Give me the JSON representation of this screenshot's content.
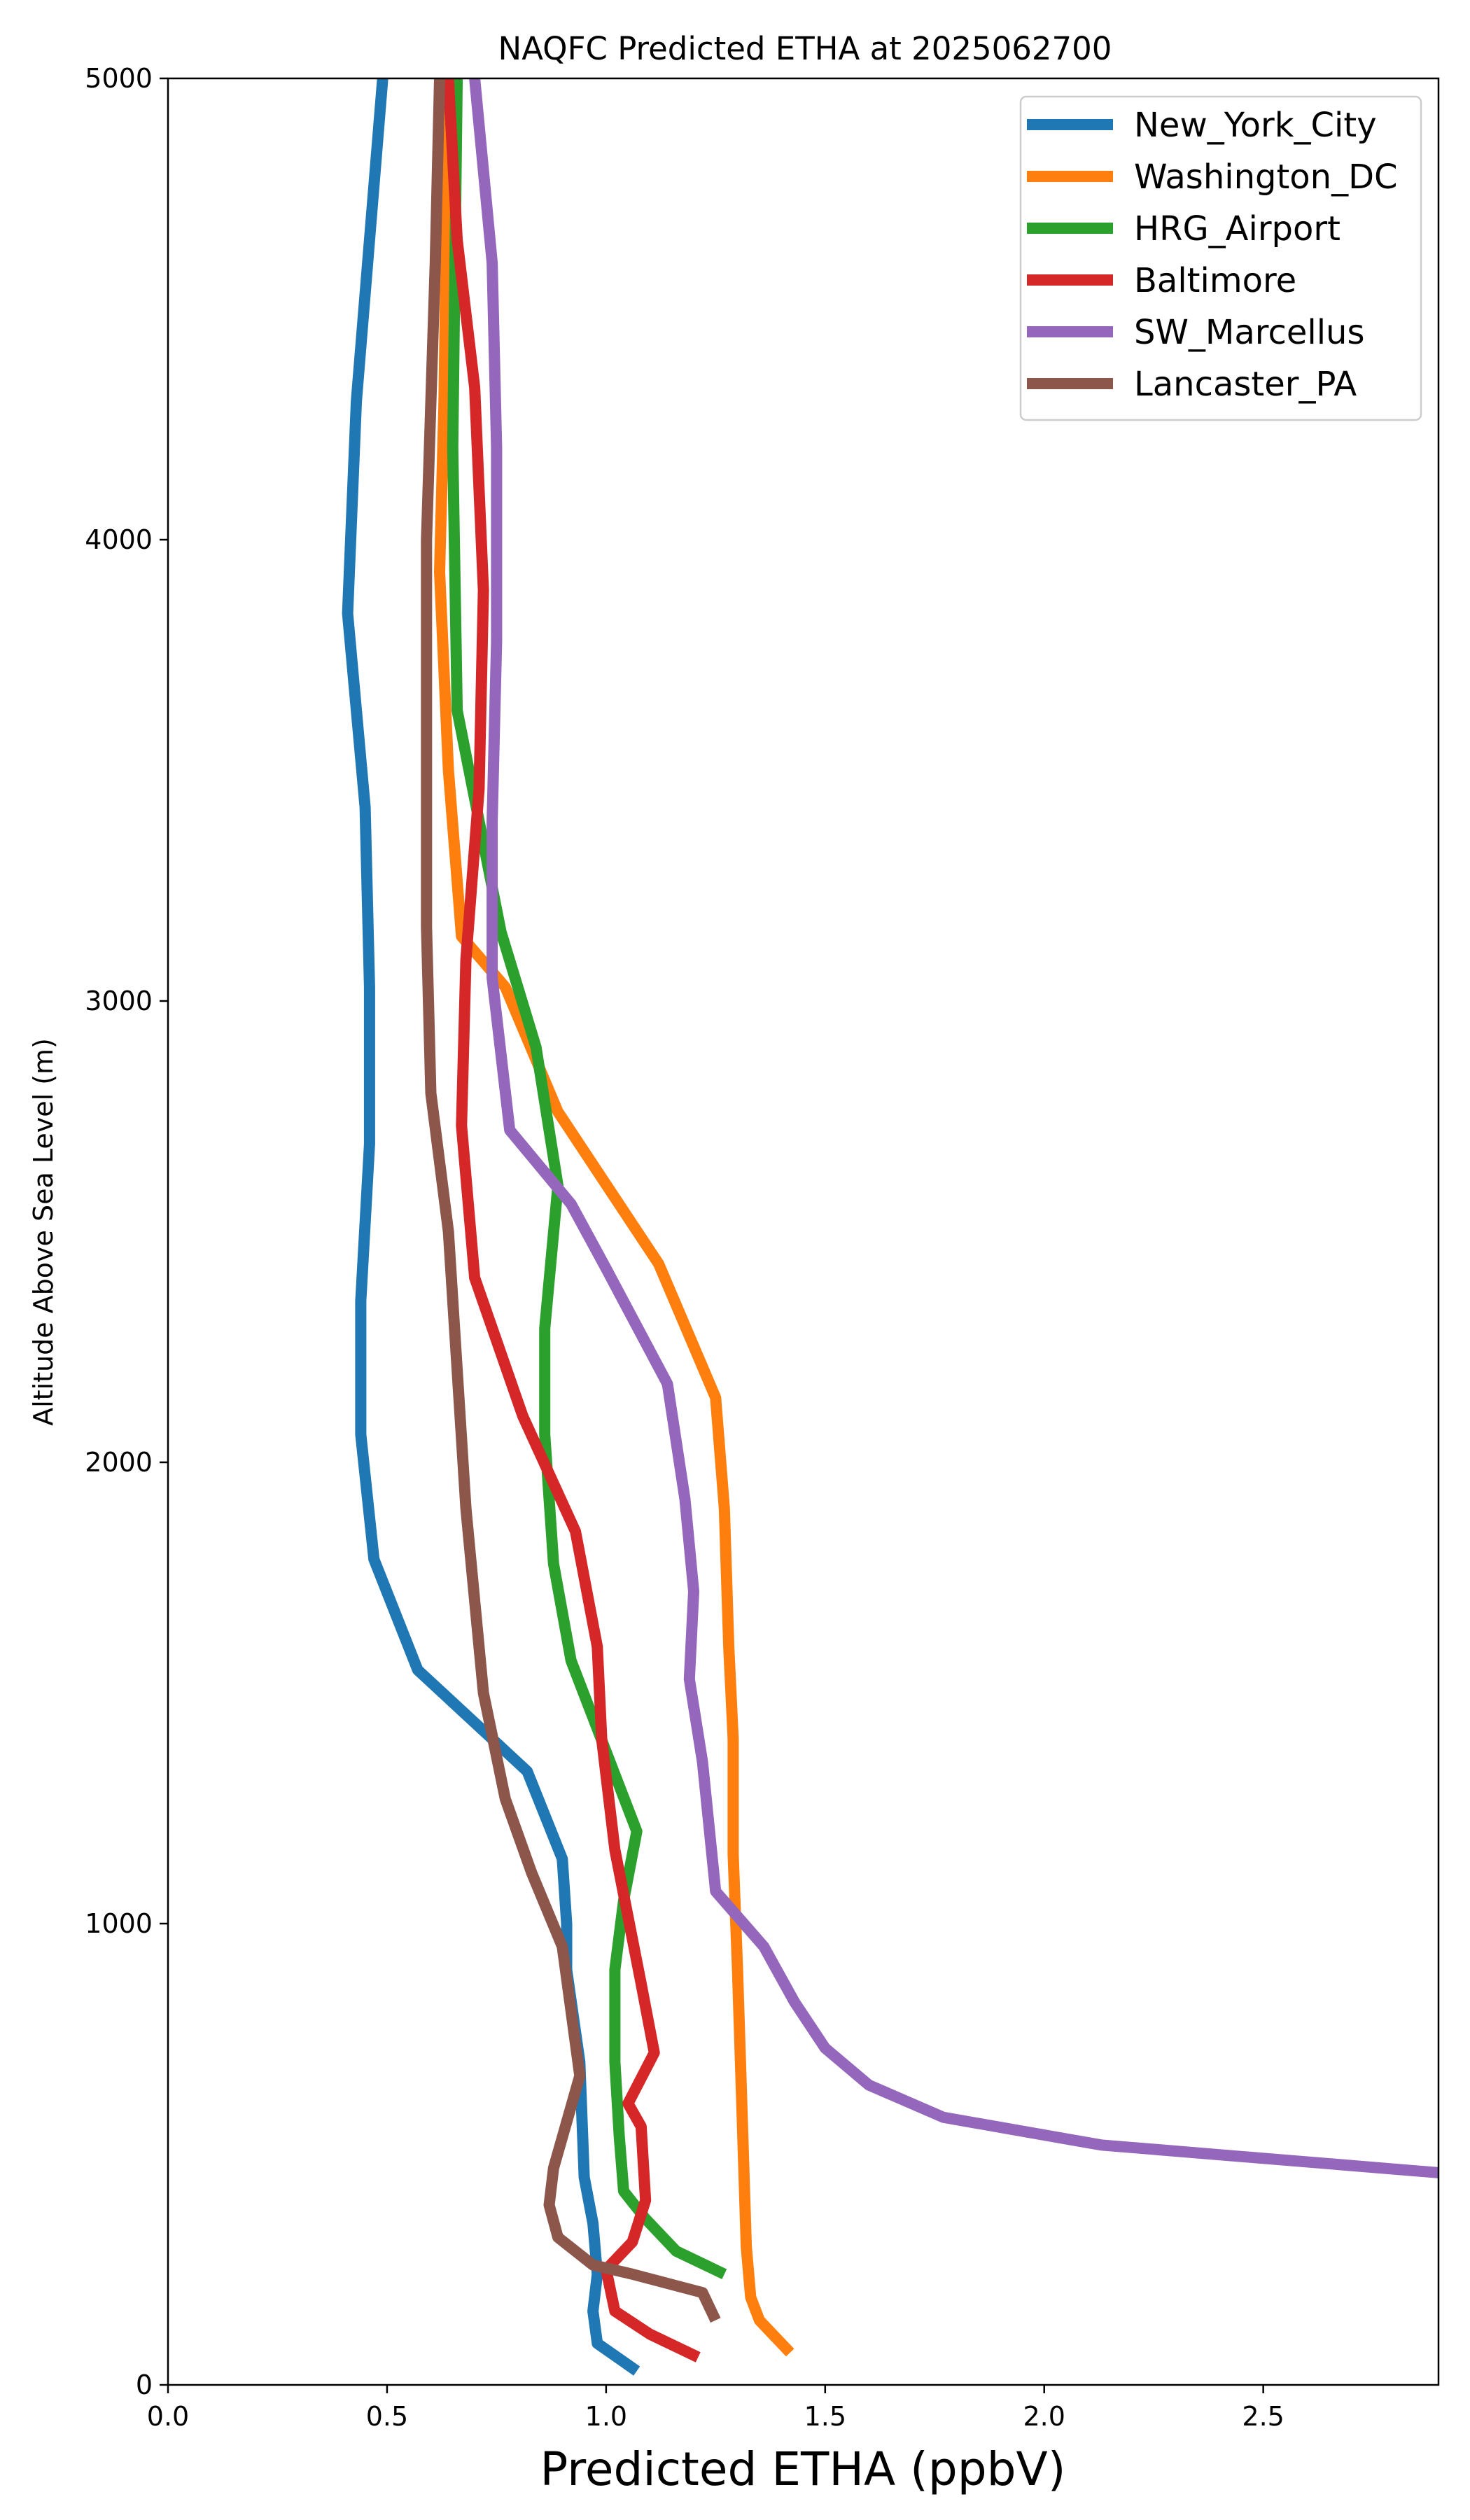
{
  "chart_data": {
    "type": "line",
    "title": "NAQFC Predicted ETHA at 2025062700",
    "xlabel": "Predicted ETHA (ppbV)",
    "ylabel": "Altitude Above Sea Level (m)",
    "xlim": [
      0,
      2.9
    ],
    "ylim": [
      0,
      5000
    ],
    "xticks": [
      0.0,
      0.5,
      1.0,
      1.5,
      2.0,
      2.5
    ],
    "xtick_labels": [
      "0.0",
      "0.5",
      "1.0",
      "1.5",
      "2.0",
      "2.5"
    ],
    "yticks": [
      0,
      1000,
      2000,
      3000,
      4000,
      5000
    ],
    "ytick_labels": [
      "0",
      "1000",
      "2000",
      "3000",
      "4000",
      "5000"
    ],
    "grid": false,
    "legend_position": "top-right",
    "series": [
      {
        "name": "New_York_City",
        "color": "#1f77b4",
        "points": [
          [
            1.07,
            30
          ],
          [
            0.98,
            90
          ],
          [
            0.97,
            160
          ],
          [
            0.98,
            240
          ],
          [
            0.97,
            350
          ],
          [
            0.95,
            450
          ],
          [
            0.94,
            700
          ],
          [
            0.91,
            900
          ],
          [
            0.91,
            1000
          ],
          [
            0.9,
            1140
          ],
          [
            0.82,
            1330
          ],
          [
            0.57,
            1550
          ],
          [
            0.47,
            1790
          ],
          [
            0.44,
            2060
          ],
          [
            0.44,
            2350
          ],
          [
            0.46,
            2690
          ],
          [
            0.46,
            3030
          ],
          [
            0.45,
            3420
          ],
          [
            0.41,
            3840
          ],
          [
            0.43,
            4300
          ],
          [
            0.49,
            5000
          ]
        ]
      },
      {
        "name": "Washington_DC",
        "color": "#ff7f0e",
        "points": [
          [
            1.42,
            70
          ],
          [
            1.35,
            140
          ],
          [
            1.33,
            190
          ],
          [
            1.32,
            300
          ],
          [
            1.31,
            600
          ],
          [
            1.3,
            900
          ],
          [
            1.29,
            1150
          ],
          [
            1.29,
            1400
          ],
          [
            1.28,
            1600
          ],
          [
            1.27,
            1900
          ],
          [
            1.25,
            2140
          ],
          [
            1.12,
            2430
          ],
          [
            0.89,
            2760
          ],
          [
            0.77,
            3030
          ],
          [
            0.67,
            3140
          ],
          [
            0.64,
            3500
          ],
          [
            0.62,
            3930
          ],
          [
            0.63,
            4300
          ],
          [
            0.64,
            5000
          ]
        ]
      },
      {
        "name": "HRG_Airport",
        "color": "#2ca02c",
        "points": [
          [
            1.27,
            240
          ],
          [
            1.16,
            290
          ],
          [
            1.09,
            360
          ],
          [
            1.04,
            420
          ],
          [
            1.03,
            540
          ],
          [
            1.02,
            700
          ],
          [
            1.02,
            900
          ],
          [
            1.04,
            1050
          ],
          [
            1.07,
            1200
          ],
          [
            0.92,
            1570
          ],
          [
            0.88,
            1780
          ],
          [
            0.86,
            2060
          ],
          [
            0.86,
            2290
          ],
          [
            0.89,
            2600
          ],
          [
            0.84,
            2900
          ],
          [
            0.76,
            3150
          ],
          [
            0.66,
            3630
          ],
          [
            0.65,
            4200
          ],
          [
            0.66,
            5000
          ]
        ]
      },
      {
        "name": "Baltimore",
        "color": "#d62728",
        "points": [
          [
            1.21,
            60
          ],
          [
            1.1,
            110
          ],
          [
            1.02,
            160
          ],
          [
            1.0,
            250
          ],
          [
            1.06,
            310
          ],
          [
            1.09,
            400
          ],
          [
            1.08,
            560
          ],
          [
            1.05,
            610
          ],
          [
            1.11,
            720
          ],
          [
            1.08,
            870
          ],
          [
            1.02,
            1160
          ],
          [
            0.99,
            1400
          ],
          [
            0.98,
            1600
          ],
          [
            0.93,
            1850
          ],
          [
            0.81,
            2100
          ],
          [
            0.7,
            2400
          ],
          [
            0.67,
            2730
          ],
          [
            0.68,
            3090
          ],
          [
            0.71,
            3460
          ],
          [
            0.72,
            3890
          ],
          [
            0.7,
            4330
          ],
          [
            0.66,
            4650
          ],
          [
            0.64,
            5000
          ]
        ]
      },
      {
        "name": "SW_Marcellus",
        "color": "#9467bd",
        "points": [
          [
            2.9,
            460
          ],
          [
            2.13,
            520
          ],
          [
            1.77,
            580
          ],
          [
            1.6,
            650
          ],
          [
            1.5,
            730
          ],
          [
            1.43,
            830
          ],
          [
            1.36,
            950
          ],
          [
            1.25,
            1070
          ],
          [
            1.22,
            1350
          ],
          [
            1.19,
            1530
          ],
          [
            1.2,
            1720
          ],
          [
            1.18,
            1920
          ],
          [
            1.14,
            2170
          ],
          [
            1.0,
            2420
          ],
          [
            0.92,
            2560
          ],
          [
            0.78,
            2720
          ],
          [
            0.74,
            3050
          ],
          [
            0.74,
            3390
          ],
          [
            0.75,
            3780
          ],
          [
            0.75,
            4200
          ],
          [
            0.74,
            4600
          ],
          [
            0.7,
            5000
          ]
        ]
      },
      {
        "name": "Lancaster_PA",
        "color": "#8c564b",
        "points": [
          [
            1.25,
            140
          ],
          [
            1.22,
            200
          ],
          [
            1.06,
            240
          ],
          [
            0.97,
            260
          ],
          [
            0.89,
            320
          ],
          [
            0.87,
            390
          ],
          [
            0.88,
            470
          ],
          [
            0.94,
            670
          ],
          [
            0.9,
            950
          ],
          [
            0.83,
            1110
          ],
          [
            0.77,
            1270
          ],
          [
            0.72,
            1500
          ],
          [
            0.68,
            1900
          ],
          [
            0.64,
            2500
          ],
          [
            0.6,
            2800
          ],
          [
            0.59,
            3160
          ],
          [
            0.59,
            3530
          ],
          [
            0.59,
            4000
          ],
          [
            0.61,
            4600
          ],
          [
            0.62,
            5000
          ]
        ]
      }
    ]
  }
}
